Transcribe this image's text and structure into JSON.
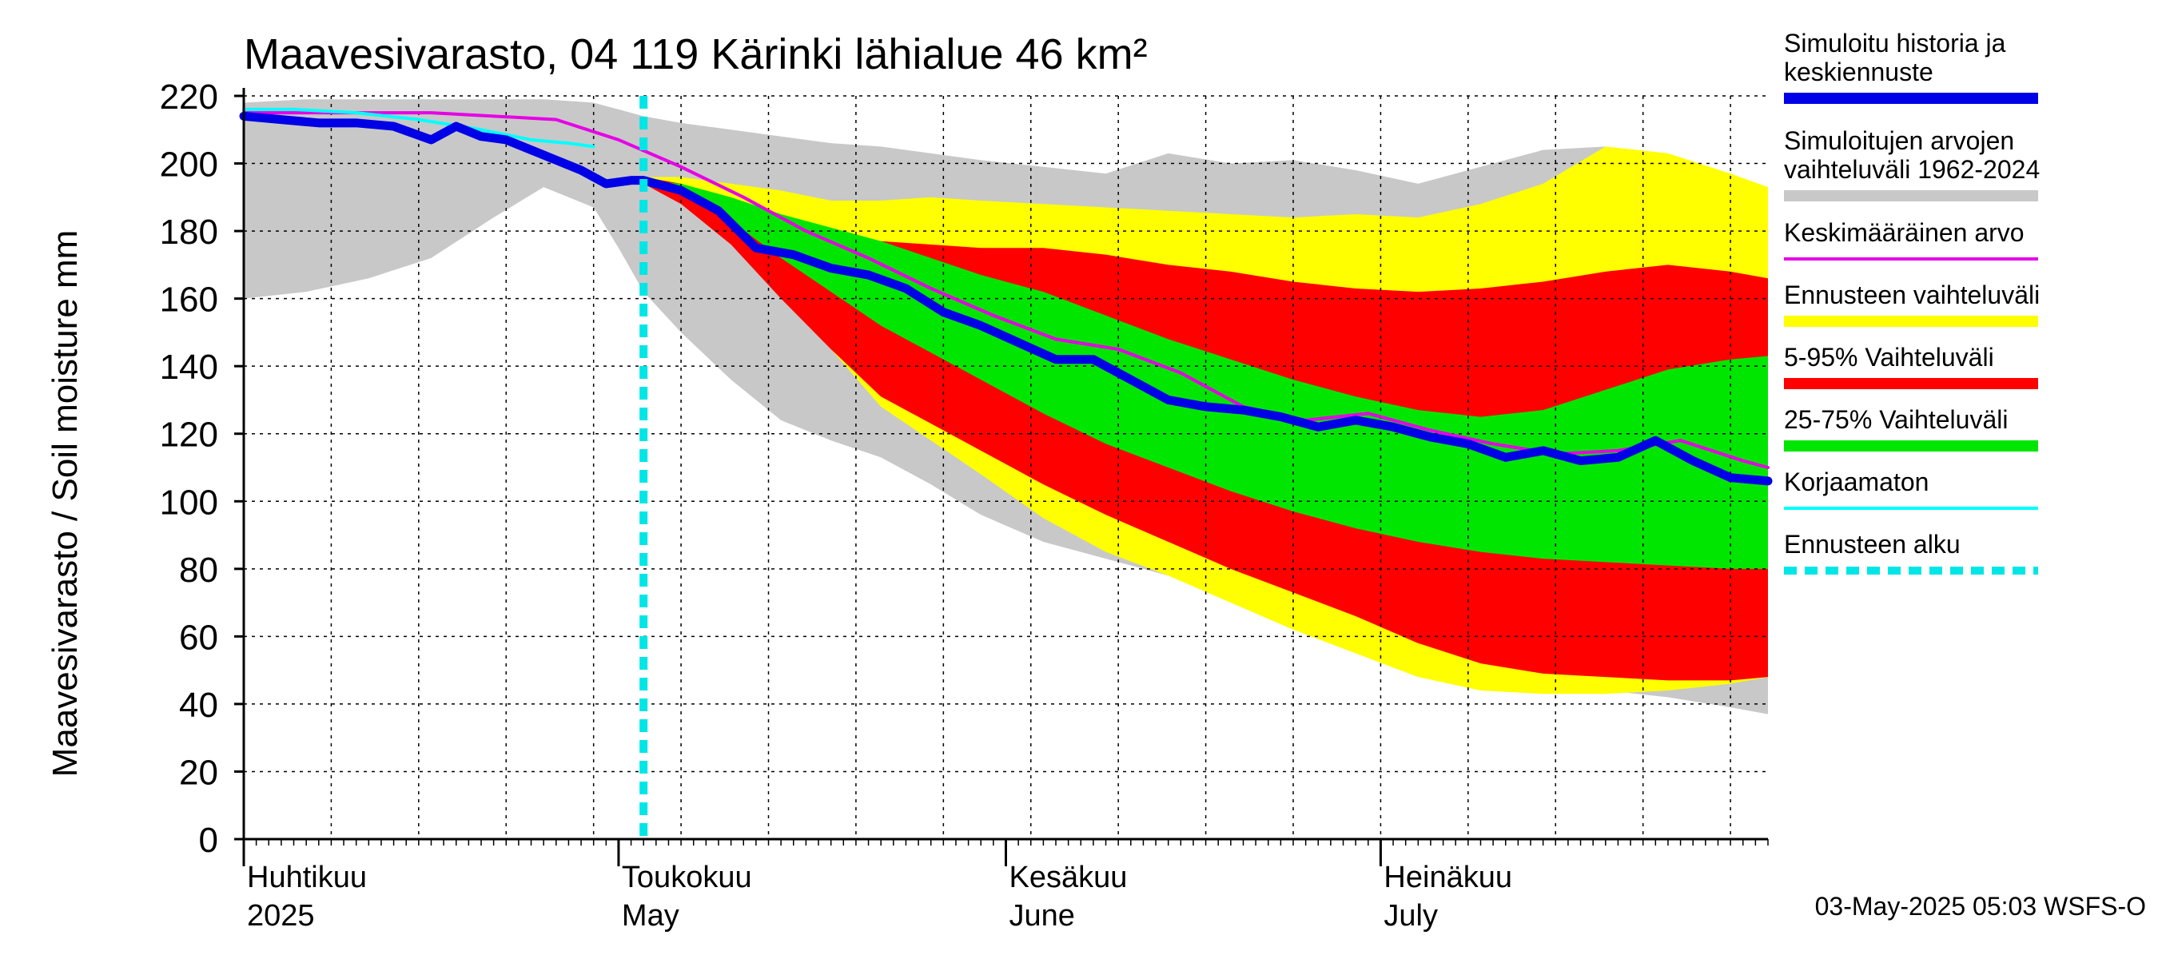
{
  "chart_data": {
    "type": "area",
    "title": "Maavesivarasto, 04 119 Kärinki lähialue 46 km²",
    "ylabel": "Maavesivarasto / Soil moisture   mm",
    "ylim": [
      0,
      220
    ],
    "yticks": [
      0,
      20,
      40,
      60,
      80,
      100,
      120,
      140,
      160,
      180,
      200,
      220
    ],
    "x_unit": "day of year 2025",
    "xlim": [
      91,
      213
    ],
    "months": [
      {
        "day": 91,
        "fi": "Huhtikuu",
        "en": "2025"
      },
      {
        "day": 121,
        "fi": "Toukokuu",
        "en": "May"
      },
      {
        "day": 152,
        "fi": "Kesäkuu",
        "en": "June"
      },
      {
        "day": 182,
        "fi": "Heinäkuu",
        "en": "July"
      }
    ],
    "forecast_start_day": 123,
    "footer": "03-May-2025 05:03 WSFS-O",
    "legend": [
      {
        "label": "Simuloitu historia ja\nkeskiennuste",
        "color": "#0000e6",
        "style": "thick"
      },
      {
        "label": "Simuloitujen arvojen\nvaihteluväli 1962-2024",
        "color": "#c8c8c8",
        "style": "thick"
      },
      {
        "label": "Keskimääräinen arvo",
        "color": "#e600e6",
        "style": "thin"
      },
      {
        "label": "Ennusteen vaihteluväli",
        "color": "#ffff00",
        "style": "thick"
      },
      {
        "label": "5-95% Vaihteluväli",
        "color": "#ff0000",
        "style": "thick"
      },
      {
        "label": "25-75% Vaihteluväli",
        "color": "#00e600",
        "style": "thick"
      },
      {
        "label": "Korjaamaton",
        "color": "#00ffff",
        "style": "thin"
      },
      {
        "label": "Ennusteen alku",
        "color": "#00e6e6",
        "style": "dashed"
      }
    ],
    "series": [
      {
        "name": "Simuloitujen arvojen vaihteluväli 1962-2024",
        "kind": "band",
        "color": "#c8c8c8",
        "x": [
          91,
          96,
          101,
          106,
          111,
          115,
          119,
          121,
          123,
          126,
          130,
          134,
          138,
          142,
          146,
          150,
          155,
          160,
          165,
          170,
          175,
          180,
          185,
          190,
          195,
          200,
          205,
          210,
          213
        ],
        "low": [
          160,
          162,
          166,
          172,
          184,
          193,
          187,
          175,
          162,
          150,
          136,
          124,
          118,
          113,
          105,
          96,
          88,
          83,
          78,
          73,
          67,
          60,
          55,
          50,
          47,
          44,
          42,
          39,
          37
        ],
        "high": [
          218,
          219,
          219,
          219,
          219,
          219,
          218,
          216,
          214,
          212,
          210,
          208,
          206,
          205,
          203,
          201,
          199,
          197,
          203,
          200,
          201,
          198,
          194,
          199,
          204,
          205,
          201,
          196,
          192
        ]
      },
      {
        "name": "Ennusteen vaihteluväli",
        "kind": "band",
        "color": "#ffff00",
        "x": [
          123,
          126,
          130,
          134,
          138,
          142,
          146,
          150,
          155,
          160,
          165,
          170,
          175,
          180,
          185,
          190,
          195,
          200,
          205,
          210,
          213
        ],
        "low": [
          194,
          189,
          178,
          162,
          145,
          128,
          118,
          108,
          95,
          85,
          78,
          70,
          62,
          55,
          48,
          44,
          43,
          43,
          44,
          46,
          48
        ],
        "high": [
          196,
          196,
          194,
          192,
          189,
          189,
          190,
          189,
          188,
          187,
          186,
          185,
          184,
          185,
          184,
          188,
          194,
          205,
          203,
          197,
          193
        ]
      },
      {
        "name": "5-95% Vaihteluväli",
        "kind": "band",
        "color": "#ff0000",
        "x": [
          123,
          126,
          130,
          134,
          138,
          142,
          146,
          150,
          155,
          160,
          165,
          170,
          175,
          180,
          185,
          190,
          195,
          200,
          205,
          210,
          213
        ],
        "low": [
          194,
          188,
          176,
          160,
          145,
          131,
          123,
          115,
          105,
          96,
          88,
          80,
          73,
          66,
          58,
          52,
          49,
          48,
          47,
          47,
          48
        ],
        "high": [
          196,
          194,
          189,
          184,
          180,
          177,
          176,
          175,
          175,
          173,
          170,
          168,
          165,
          163,
          162,
          163,
          165,
          168,
          170,
          168,
          166
        ]
      },
      {
        "name": "25-75% Vaihteluväli",
        "kind": "band",
        "color": "#00e600",
        "x": [
          123,
          126,
          130,
          134,
          138,
          142,
          146,
          150,
          155,
          160,
          165,
          170,
          175,
          180,
          185,
          190,
          195,
          200,
          205,
          210,
          213
        ],
        "low": [
          194,
          191,
          183,
          172,
          162,
          152,
          144,
          136,
          126,
          117,
          110,
          103,
          97,
          92,
          88,
          85,
          83,
          82,
          81,
          80,
          80
        ],
        "high": [
          195,
          194,
          190,
          185,
          181,
          177,
          172,
          167,
          162,
          155,
          148,
          142,
          136,
          131,
          127,
          125,
          127,
          133,
          139,
          142,
          143
        ]
      },
      {
        "name": "Keskimääräinen arvo",
        "kind": "line",
        "color": "#e600e6",
        "x": [
          91,
          96,
          101,
          106,
          111,
          116,
          121,
          126,
          131,
          136,
          141,
          146,
          151,
          156,
          161,
          166,
          171,
          176,
          181,
          186,
          191,
          196,
          201,
          206,
          211,
          213
        ],
        "y": [
          215,
          215,
          215,
          215,
          214,
          213,
          207,
          199,
          190,
          180,
          172,
          163,
          155,
          148,
          145,
          138,
          128,
          124,
          126,
          121,
          117,
          114,
          115,
          118,
          112,
          110
        ]
      },
      {
        "name": "Korjaamaton",
        "kind": "line",
        "color": "#00ffff",
        "x": [
          91,
          95,
          100,
          105,
          110,
          114,
          117,
          119
        ],
        "y": [
          216,
          216,
          215,
          213,
          210,
          207,
          206,
          205
        ]
      },
      {
        "name": "Simuloitu historia ja keskiennuste",
        "kind": "line",
        "color": "#0000e6",
        "x": [
          91,
          94,
          97,
          100,
          103,
          106,
          108,
          110,
          112,
          114,
          116,
          118,
          120,
          122,
          123,
          126,
          129,
          132,
          135,
          138,
          141,
          144,
          147,
          150,
          153,
          156,
          159,
          162,
          165,
          168,
          171,
          174,
          177,
          180,
          183,
          186,
          189,
          192,
          195,
          198,
          201,
          204,
          207,
          210,
          213
        ],
        "y": [
          214,
          213,
          212,
          212,
          211,
          207,
          211,
          208,
          207,
          204,
          201,
          198,
          194,
          195,
          195,
          192,
          186,
          175,
          173,
          169,
          167,
          163,
          156,
          152,
          147,
          142,
          142,
          136,
          130,
          128,
          127,
          125,
          122,
          124,
          122,
          119,
          117,
          113,
          115,
          112,
          113,
          118,
          112,
          107,
          106
        ]
      }
    ]
  }
}
